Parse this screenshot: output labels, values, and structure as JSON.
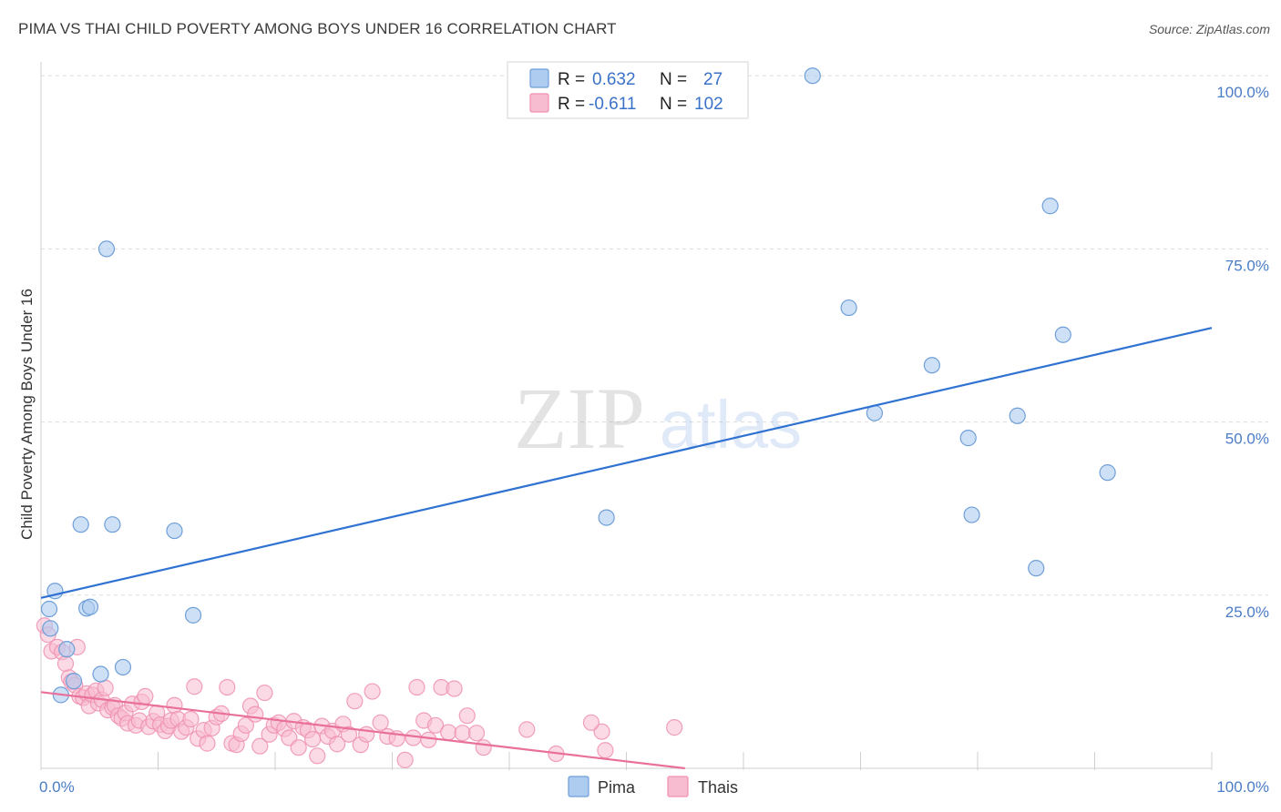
{
  "header": {
    "title": "PIMA VS THAI CHILD POVERTY AMONG BOYS UNDER 16 CORRELATION CHART",
    "source": "Source: ZipAtlas.com"
  },
  "watermark": {
    "zip": "ZIP",
    "atlas": "atlas"
  },
  "colors": {
    "pima_fill": "#aecbf0",
    "pima_stroke": "#6f9fd8",
    "pima_line": "#2f72d1",
    "thai_fill": "#f7bcd0",
    "thai_stroke": "#ee8fb0",
    "thai_line": "#e8709a",
    "tick_label": "#4a7cc8",
    "grid": "#dcdcdc"
  },
  "legend": {
    "rows": [
      {
        "r_label": "R =",
        "r_value": "0.632",
        "n_label": "N =",
        "n_value": "27"
      },
      {
        "r_label": "R =",
        "r_value": "-0.611",
        "n_label": "N =",
        "n_value": "102"
      }
    ]
  },
  "chart_data": {
    "type": "scatter",
    "title": "PIMA VS THAI CHILD POVERTY AMONG BOYS UNDER 16 CORRELATION CHART",
    "xlabel": "",
    "ylabel": "Child Poverty Among Boys Under 16",
    "xlim": [
      0,
      100
    ],
    "ylim": [
      0,
      102
    ],
    "x_tick_labels": [
      "0.0%",
      "100.0%"
    ],
    "y_ticks": [
      {
        "value": 25,
        "label": "25.0%"
      },
      {
        "value": 50,
        "label": "50.0%"
      },
      {
        "value": 75,
        "label": "75.0%"
      },
      {
        "value": 100,
        "label": "100.0%"
      }
    ],
    "legend_position": "bottom-center",
    "series": [
      {
        "name": "Pima",
        "points": [
          [
            0.7,
            23.0
          ],
          [
            0.8,
            20.2
          ],
          [
            1.2,
            25.6
          ],
          [
            1.7,
            10.6
          ],
          [
            2.2,
            17.2
          ],
          [
            2.8,
            12.6
          ],
          [
            3.4,
            35.2
          ],
          [
            3.9,
            23.1
          ],
          [
            4.2,
            23.3
          ],
          [
            5.1,
            13.6
          ],
          [
            5.6,
            75.0
          ],
          [
            6.1,
            35.2
          ],
          [
            7.0,
            14.6
          ],
          [
            11.4,
            34.3
          ],
          [
            13.0,
            22.1
          ],
          [
            48.3,
            36.2
          ],
          [
            65.9,
            100.0
          ],
          [
            69.0,
            66.5
          ],
          [
            71.2,
            51.3
          ],
          [
            76.1,
            58.2
          ],
          [
            79.2,
            47.7
          ],
          [
            79.5,
            36.6
          ],
          [
            83.4,
            50.9
          ],
          [
            85.0,
            28.9
          ],
          [
            86.2,
            81.2
          ],
          [
            87.3,
            62.6
          ],
          [
            91.1,
            42.7
          ]
        ],
        "trend": {
          "x": [
            0,
            100
          ],
          "y": [
            24.6,
            63.6
          ]
        }
      },
      {
        "name": "Thais",
        "points": [
          [
            0.3,
            20.6
          ],
          [
            0.6,
            19.3
          ],
          [
            0.9,
            16.9
          ],
          [
            1.4,
            17.5
          ],
          [
            1.8,
            16.8
          ],
          [
            2.1,
            15.1
          ],
          [
            2.4,
            13.1
          ],
          [
            2.6,
            12.5
          ],
          [
            2.9,
            12.0
          ],
          [
            3.1,
            17.5
          ],
          [
            3.3,
            10.4
          ],
          [
            3.6,
            10.2
          ],
          [
            3.9,
            10.8
          ],
          [
            4.1,
            9.0
          ],
          [
            4.4,
            10.6
          ],
          [
            4.7,
            11.2
          ],
          [
            4.9,
            9.4
          ],
          [
            5.2,
            9.9
          ],
          [
            5.5,
            11.6
          ],
          [
            5.7,
            8.4
          ],
          [
            6.1,
            8.8
          ],
          [
            6.3,
            9.1
          ],
          [
            6.6,
            7.6
          ],
          [
            6.9,
            7.2
          ],
          [
            7.2,
            8.0
          ],
          [
            7.4,
            6.5
          ],
          [
            7.8,
            9.3
          ],
          [
            8.1,
            6.2
          ],
          [
            8.4,
            6.9
          ],
          [
            8.6,
            9.6
          ],
          [
            8.9,
            10.4
          ],
          [
            9.2,
            6.0
          ],
          [
            9.6,
            6.8
          ],
          [
            9.9,
            8.0
          ],
          [
            10.2,
            6.3
          ],
          [
            10.6,
            5.4
          ],
          [
            10.9,
            6.1
          ],
          [
            11.1,
            6.9
          ],
          [
            11.4,
            9.1
          ],
          [
            11.7,
            7.1
          ],
          [
            12.0,
            5.3
          ],
          [
            12.4,
            5.9
          ],
          [
            12.8,
            7.1
          ],
          [
            13.1,
            11.8
          ],
          [
            13.4,
            4.3
          ],
          [
            13.9,
            5.5
          ],
          [
            14.2,
            3.6
          ],
          [
            14.6,
            5.8
          ],
          [
            15.0,
            7.4
          ],
          [
            15.4,
            7.9
          ],
          [
            15.9,
            11.7
          ],
          [
            16.3,
            3.6
          ],
          [
            16.7,
            3.4
          ],
          [
            17.1,
            5.0
          ],
          [
            17.5,
            6.2
          ],
          [
            17.9,
            9.0
          ],
          [
            18.3,
            7.8
          ],
          [
            18.7,
            3.2
          ],
          [
            19.1,
            10.9
          ],
          [
            19.5,
            4.9
          ],
          [
            19.9,
            6.2
          ],
          [
            20.3,
            6.6
          ],
          [
            20.8,
            5.7
          ],
          [
            21.2,
            4.4
          ],
          [
            21.6,
            6.8
          ],
          [
            22.0,
            3.0
          ],
          [
            22.4,
            5.9
          ],
          [
            22.8,
            5.5
          ],
          [
            23.2,
            4.2
          ],
          [
            23.6,
            1.8
          ],
          [
            24.0,
            6.1
          ],
          [
            24.5,
            4.6
          ],
          [
            24.9,
            5.4
          ],
          [
            25.3,
            3.5
          ],
          [
            25.8,
            6.4
          ],
          [
            26.3,
            4.9
          ],
          [
            26.8,
            9.7
          ],
          [
            27.3,
            3.4
          ],
          [
            27.8,
            4.9
          ],
          [
            28.3,
            11.1
          ],
          [
            29.0,
            6.6
          ],
          [
            29.6,
            4.6
          ],
          [
            30.4,
            4.3
          ],
          [
            31.1,
            1.2
          ],
          [
            31.8,
            4.4
          ],
          [
            32.1,
            11.7
          ],
          [
            32.7,
            6.9
          ],
          [
            33.1,
            4.1
          ],
          [
            33.7,
            6.2
          ],
          [
            34.2,
            11.7
          ],
          [
            34.8,
            5.2
          ],
          [
            35.3,
            11.5
          ],
          [
            36.0,
            5.1
          ],
          [
            36.4,
            7.6
          ],
          [
            37.2,
            5.1
          ],
          [
            37.8,
            3.0
          ],
          [
            41.5,
            5.6
          ],
          [
            44.0,
            2.1
          ],
          [
            47.9,
            5.3
          ],
          [
            47.0,
            6.6
          ],
          [
            48.2,
            2.6
          ],
          [
            54.1,
            5.9
          ]
        ],
        "trend": {
          "x": [
            0,
            55
          ],
          "y": [
            11.0,
            0.0
          ]
        }
      }
    ]
  }
}
